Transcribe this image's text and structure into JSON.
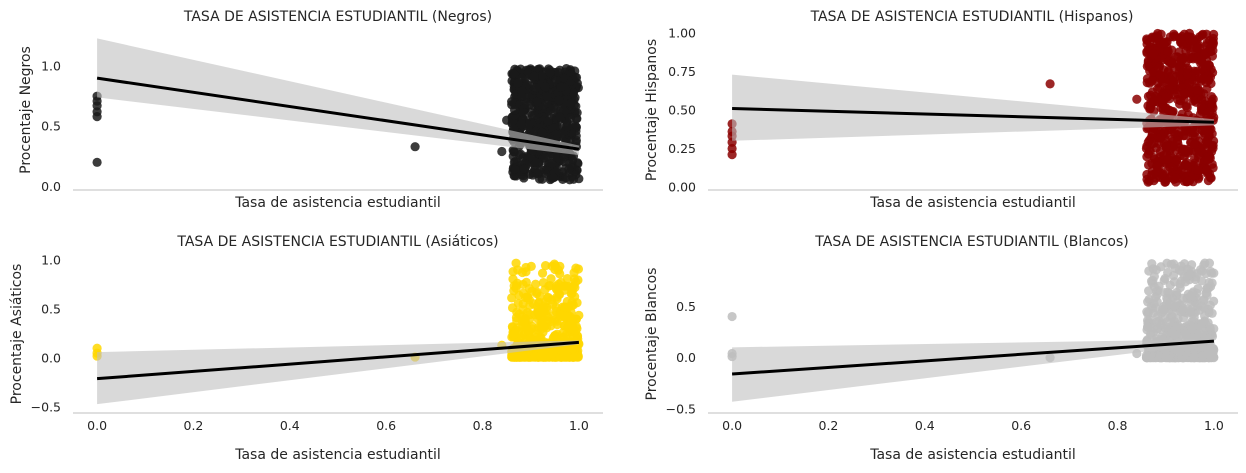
{
  "chart_data": [
    {
      "type": "scatter",
      "title": "TASA DE ASISTENCIA ESTUDIANTIL (Negros)",
      "xlabel": "Tasa de asistencia estudiantil",
      "ylabel": "Procentaje Negros",
      "xlim": [
        -0.05,
        1.05
      ],
      "ylim": [
        -0.03,
        1.3
      ],
      "xticks_shown": false,
      "yticks": [
        0.0,
        0.5,
        1.0
      ],
      "ytick_labels": [
        "0.0",
        "0.5",
        "1.0"
      ],
      "color": "#1a1a1a",
      "grid": false,
      "regression": {
        "x": [
          0.0,
          1.0
        ],
        "y": [
          0.9,
          0.31
        ],
        "ci_lower": [
          0.74,
          0.26
        ],
        "ci_upper": [
          1.23,
          0.34
        ]
      },
      "outliers": [
        {
          "x": 0.0,
          "y": 0.2
        },
        {
          "x": 0.0,
          "y": 0.58
        },
        {
          "x": 0.0,
          "y": 0.62
        },
        {
          "x": 0.0,
          "y": 0.67
        },
        {
          "x": 0.0,
          "y": 0.71
        },
        {
          "x": 0.0,
          "y": 0.75
        },
        {
          "x": 0.66,
          "y": 0.33
        },
        {
          "x": 0.84,
          "y": 0.29
        },
        {
          "x": 0.85,
          "y": 0.55
        }
      ],
      "cluster": {
        "x_range": [
          0.86,
          1.0
        ],
        "y_range": [
          0.05,
          0.98
        ],
        "n_points": 650,
        "y_bias": 0.8
      }
    },
    {
      "type": "scatter",
      "title": "TASA DE ASISTENCIA ESTUDIANTIL (Hispanos)",
      "xlabel": "Tasa de asistencia estudiantil",
      "ylabel": "Procentaje Hispanos",
      "xlim": [
        -0.05,
        1.05
      ],
      "ylim": [
        -0.02,
        1.02
      ],
      "xticks_shown": false,
      "yticks": [
        0.0,
        0.25,
        0.5,
        0.75,
        1.0
      ],
      "ytick_labels": [
        "0.00",
        "0.25",
        "0.50",
        "0.75",
        "1.00"
      ],
      "color": "#8b0000",
      "grid": false,
      "regression": {
        "x": [
          0.0,
          1.0
        ],
        "y": [
          0.51,
          0.42
        ],
        "ci_lower": [
          0.3,
          0.4
        ],
        "ci_upper": [
          0.73,
          0.44
        ]
      },
      "outliers": [
        {
          "x": 0.0,
          "y": 0.21
        },
        {
          "x": 0.0,
          "y": 0.25
        },
        {
          "x": 0.0,
          "y": 0.29
        },
        {
          "x": 0.0,
          "y": 0.33
        },
        {
          "x": 0.0,
          "y": 0.36
        },
        {
          "x": 0.0,
          "y": 0.41
        },
        {
          "x": 0.66,
          "y": 0.67
        },
        {
          "x": 0.84,
          "y": 0.57
        },
        {
          "x": 0.86,
          "y": 0.25
        }
      ],
      "cluster": {
        "x_range": [
          0.86,
          1.0
        ],
        "y_range": [
          0.03,
          1.0
        ],
        "n_points": 650,
        "y_bias": 1.0
      }
    },
    {
      "type": "scatter",
      "title": "TASA DE ASISTENCIA ESTUDIANTIL (Asiáticos)",
      "xlabel": "Tasa de asistencia estudiantil",
      "ylabel": "Procentaje Asiáticos",
      "xlim": [
        -0.05,
        1.05
      ],
      "ylim": [
        -0.56,
        1.05
      ],
      "xticks": [
        0.0,
        0.2,
        0.4,
        0.6,
        0.8,
        1.0
      ],
      "xtick_labels": [
        "0.0",
        "0.2",
        "0.4",
        "0.6",
        "0.8",
        "1.0"
      ],
      "yticks": [
        -0.5,
        0.0,
        0.5,
        1.0
      ],
      "ytick_labels": [
        "−0.5",
        "0.0",
        "0.5",
        "1.0"
      ],
      "color": "#ffd700",
      "grid": false,
      "regression": {
        "x": [
          0.0,
          1.0
        ],
        "y": [
          -0.21,
          0.16
        ],
        "ci_lower": [
          -0.47,
          0.14
        ],
        "ci_upper": [
          0.06,
          0.18
        ]
      },
      "outliers": [
        {
          "x": 0.0,
          "y": 0.02
        },
        {
          "x": 0.0,
          "y": 0.05
        },
        {
          "x": 0.0,
          "y": 0.1
        },
        {
          "x": 0.66,
          "y": 0.01
        },
        {
          "x": 0.84,
          "y": 0.13
        }
      ],
      "cluster": {
        "x_range": [
          0.86,
          1.0
        ],
        "y_range": [
          0.01,
          0.97
        ],
        "n_points": 650,
        "y_bias": 4.0
      }
    },
    {
      "type": "scatter",
      "title": "TASA DE ASISTENCIA ESTUDIANTIL (Blancos)",
      "xlabel": "Tasa de asistencia estudiantil",
      "ylabel": "Procentaje Blancos",
      "xlim": [
        -0.05,
        1.05
      ],
      "ylim": [
        -0.54,
        1.0
      ],
      "xticks": [
        0.0,
        0.2,
        0.4,
        0.6,
        0.8,
        1.0
      ],
      "xtick_labels": [
        "0.0",
        "0.2",
        "0.4",
        "0.6",
        "0.8",
        "1.0"
      ],
      "yticks": [
        -0.5,
        0.0,
        0.5
      ],
      "ytick_labels": [
        "−0.5",
        "0.0",
        "0.5"
      ],
      "color": "#bdbdbd",
      "grid": false,
      "regression": {
        "x": [
          0.0,
          1.0
        ],
        "y": [
          -0.16,
          0.16
        ],
        "ci_lower": [
          -0.43,
          0.14
        ],
        "ci_upper": [
          0.1,
          0.18
        ]
      },
      "outliers": [
        {
          "x": 0.0,
          "y": 0.01
        },
        {
          "x": 0.0,
          "y": 0.04
        },
        {
          "x": 0.0,
          "y": 0.4
        },
        {
          "x": 0.66,
          "y": 0.0
        },
        {
          "x": 0.84,
          "y": 0.04
        },
        {
          "x": 0.86,
          "y": 0.02
        }
      ],
      "cluster": {
        "x_range": [
          0.86,
          1.0
        ],
        "y_range": [
          0.0,
          0.93
        ],
        "n_points": 650,
        "y_bias": 3.0
      }
    }
  ]
}
